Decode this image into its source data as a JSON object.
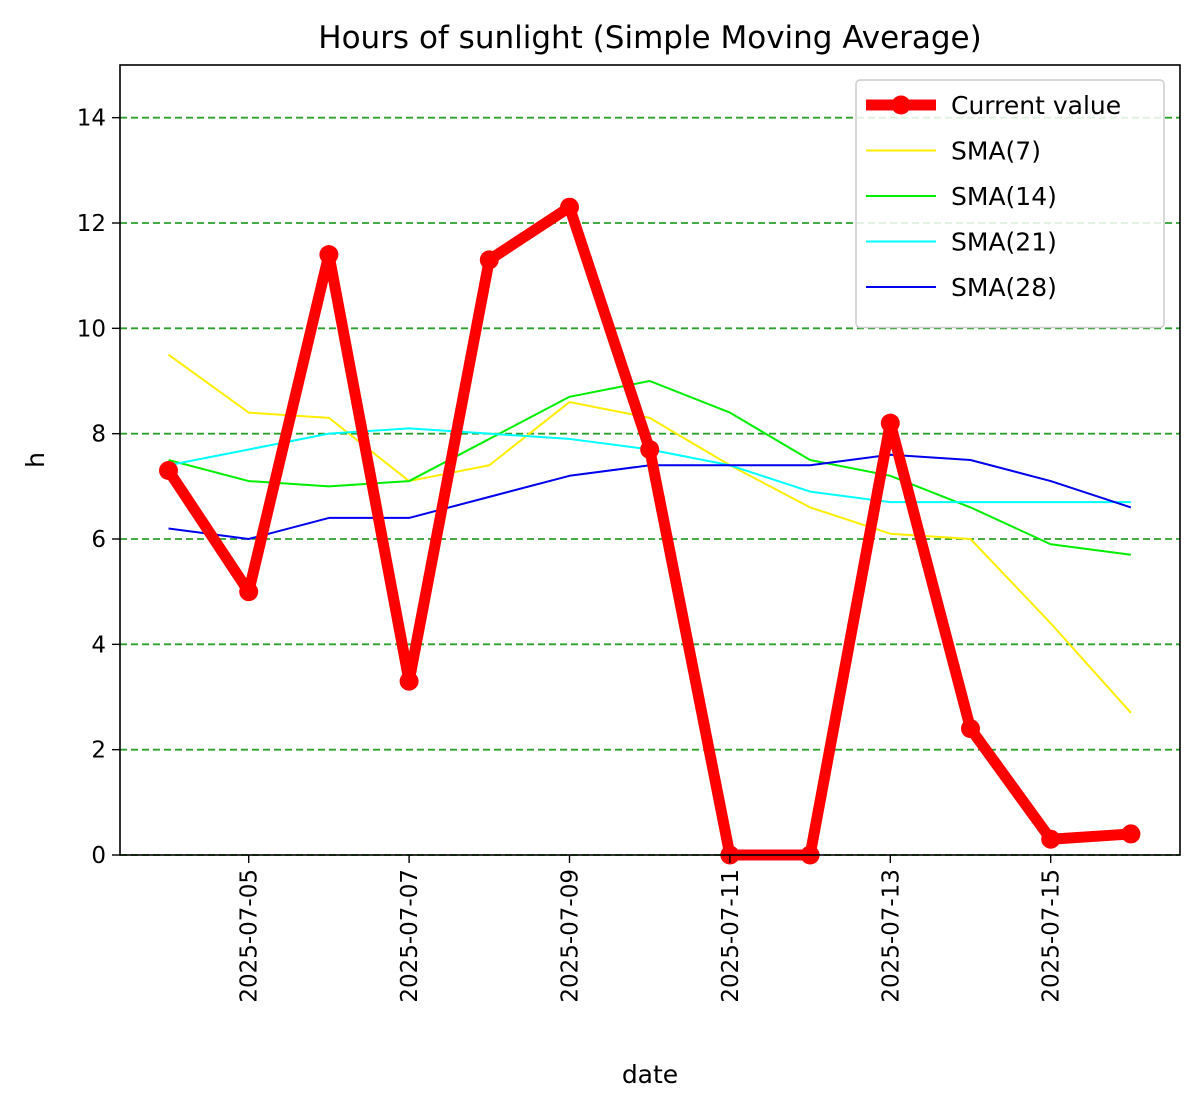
{
  "chart_data": {
    "type": "line",
    "title": "Hours of sunlight (Simple Moving Average)",
    "xlabel": "date",
    "ylabel": "h",
    "x": [
      "2025-07-04",
      "2025-07-05",
      "2025-07-06",
      "2025-07-07",
      "2025-07-08",
      "2025-07-09",
      "2025-07-10",
      "2025-07-11",
      "2025-07-12",
      "2025-07-13",
      "2025-07-14",
      "2025-07-15",
      "2025-07-16"
    ],
    "x_ticks": [
      "2025-07-05",
      "2025-07-07",
      "2025-07-09",
      "2025-07-11",
      "2025-07-13",
      "2025-07-15"
    ],
    "y_ticks": [
      0,
      2,
      4,
      6,
      8,
      10,
      12,
      14
    ],
    "ylim": [
      0,
      15
    ],
    "grid": "horizontal, dashed, green",
    "legend_position": "top-right",
    "series": [
      {
        "name": "Current value",
        "color": "#ff0000",
        "marker": "circle",
        "values": [
          7.3,
          5.0,
          11.4,
          3.3,
          11.3,
          12.3,
          7.7,
          0.0,
          0.0,
          8.2,
          2.4,
          0.3,
          0.4
        ]
      },
      {
        "name": "SMA(7)",
        "color": "#ffee00",
        "values": [
          9.5,
          8.4,
          8.3,
          7.1,
          7.4,
          8.6,
          8.3,
          7.4,
          6.6,
          6.1,
          6.0,
          4.4,
          2.7
        ]
      },
      {
        "name": "SMA(14)",
        "color": "#00ee00",
        "values": [
          7.5,
          7.1,
          7.0,
          7.1,
          7.9,
          8.7,
          9.0,
          8.4,
          7.5,
          7.2,
          6.6,
          5.9,
          5.7
        ]
      },
      {
        "name": "SMA(21)",
        "color": "#00ffff",
        "values": [
          7.4,
          7.7,
          8.0,
          8.1,
          8.0,
          7.9,
          7.7,
          7.4,
          6.9,
          6.7,
          6.7,
          6.7,
          6.7
        ]
      },
      {
        "name": "SMA(28)",
        "color": "#0000ee",
        "values": [
          6.2,
          6.0,
          6.4,
          6.4,
          6.8,
          7.2,
          7.4,
          7.4,
          7.4,
          7.6,
          7.5,
          7.1,
          6.6
        ]
      }
    ]
  }
}
